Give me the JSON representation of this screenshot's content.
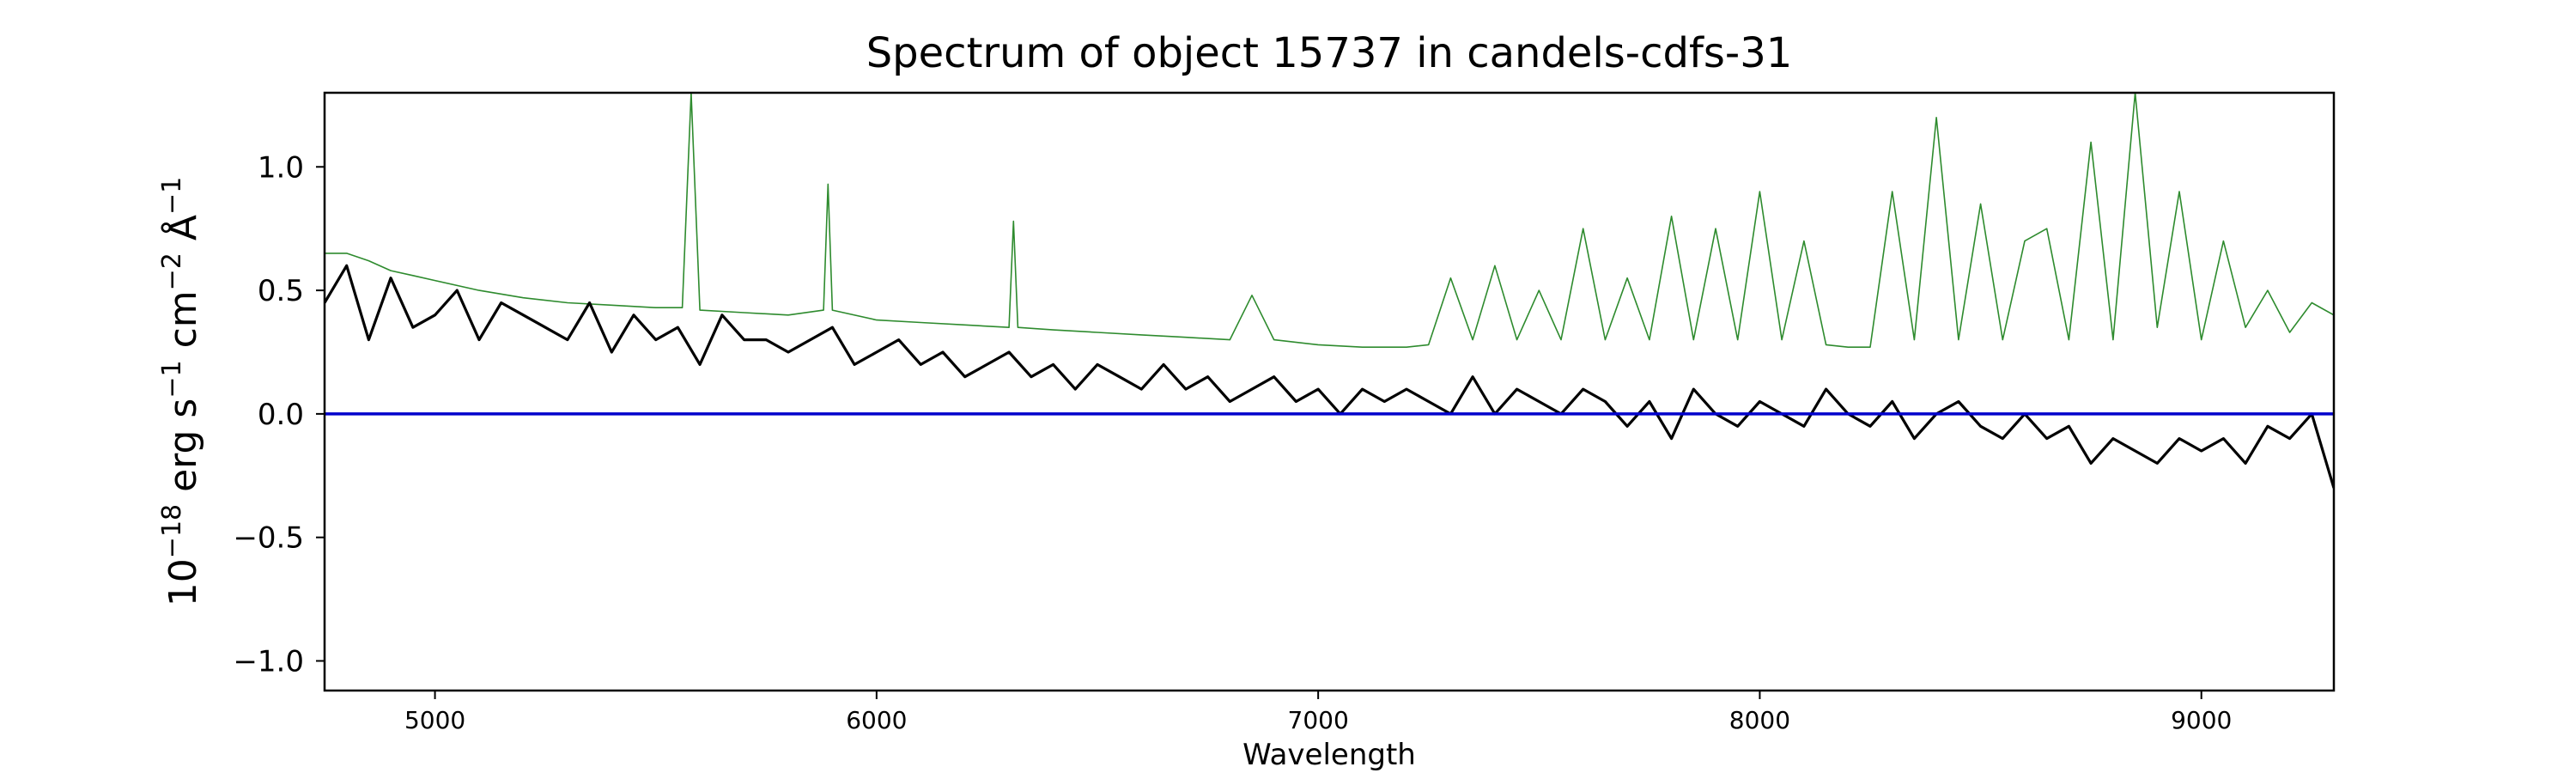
{
  "chart_data": {
    "type": "line",
    "title": "Spectrum of object 15737 in candels-cdfs-31",
    "xlabel": "Wavelength",
    "ylabel_base": "10",
    "ylabel_exp": "−18",
    "ylabel_unit_1": " erg s",
    "ylabel_exp_1": "−1",
    "ylabel_unit_2": " cm",
    "ylabel_exp_2": "−2",
    "ylabel_unit_3": " Å",
    "ylabel_exp_3": "−1",
    "xlim": [
      4750,
      9300
    ],
    "ylim": [
      -1.12,
      1.3
    ],
    "x_ticks": [
      5000,
      6000,
      7000,
      8000,
      9000
    ],
    "x_tick_labels": [
      "5000",
      "6000",
      "7000",
      "8000",
      "9000"
    ],
    "y_ticks": [
      -1.0,
      -0.5,
      0.0,
      0.5,
      1.0
    ],
    "y_tick_labels": [
      "−1.0",
      "−0.5",
      "0.0",
      "0.5",
      "1.0"
    ],
    "grid": false,
    "legend": "none",
    "series": [
      {
        "role": "flux",
        "color": "#000000",
        "x": [
          4750,
          4800,
          4850,
          4900,
          4950,
          5000,
          5050,
          5100,
          5150,
          5200,
          5250,
          5300,
          5350,
          5400,
          5450,
          5500,
          5550,
          5600,
          5650,
          5700,
          5750,
          5800,
          5850,
          5900,
          5950,
          6000,
          6050,
          6100,
          6150,
          6200,
          6250,
          6300,
          6350,
          6400,
          6450,
          6500,
          6550,
          6600,
          6650,
          6700,
          6750,
          6800,
          6850,
          6900,
          6950,
          7000,
          7050,
          7100,
          7150,
          7200,
          7250,
          7300,
          7350,
          7400,
          7450,
          7500,
          7550,
          7600,
          7650,
          7700,
          7750,
          7800,
          7850,
          7900,
          7950,
          8000,
          8050,
          8100,
          8150,
          8200,
          8250,
          8300,
          8350,
          8400,
          8450,
          8500,
          8550,
          8600,
          8650,
          8700,
          8750,
          8800,
          8850,
          8900,
          8950,
          9000,
          9050,
          9100,
          9150,
          9200,
          9250,
          9300
        ],
        "y": [
          0.45,
          0.6,
          0.3,
          0.55,
          0.35,
          0.4,
          0.5,
          0.3,
          0.45,
          0.4,
          0.35,
          0.3,
          0.45,
          0.25,
          0.4,
          0.3,
          0.35,
          0.2,
          0.4,
          0.3,
          0.3,
          0.25,
          0.3,
          0.35,
          0.2,
          0.25,
          0.3,
          0.2,
          0.25,
          0.15,
          0.2,
          0.25,
          0.15,
          0.2,
          0.1,
          0.2,
          0.15,
          0.1,
          0.2,
          0.1,
          0.15,
          0.05,
          0.1,
          0.15,
          0.05,
          0.1,
          0.0,
          0.1,
          0.05,
          0.1,
          0.05,
          0.0,
          0.15,
          0.0,
          0.1,
          0.05,
          0.0,
          0.1,
          0.05,
          -0.05,
          0.05,
          -0.1,
          0.1,
          0.0,
          -0.05,
          0.05,
          0.0,
          -0.05,
          0.1,
          0.0,
          -0.05,
          0.05,
          -0.1,
          0.0,
          0.05,
          -0.05,
          -0.1,
          0.0,
          -0.1,
          -0.05,
          -0.2,
          -0.1,
          -0.15,
          -0.2,
          -0.1,
          -0.15,
          -0.1,
          -0.2,
          -0.05,
          -0.1,
          0.0,
          -0.3
        ]
      },
      {
        "role": "error",
        "color": "#2e8b2e",
        "x": [
          4750,
          4800,
          4850,
          4900,
          4950,
          5000,
          5100,
          5200,
          5300,
          5400,
          5500,
          5560,
          5580,
          5600,
          5700,
          5800,
          5880,
          5890,
          5900,
          6000,
          6100,
          6200,
          6300,
          6310,
          6320,
          6400,
          6500,
          6600,
          6700,
          6800,
          6850,
          6900,
          7000,
          7100,
          7200,
          7250,
          7300,
          7350,
          7400,
          7450,
          7500,
          7550,
          7600,
          7650,
          7700,
          7750,
          7800,
          7850,
          7900,
          7950,
          8000,
          8050,
          8100,
          8150,
          8200,
          8250,
          8300,
          8350,
          8400,
          8450,
          8500,
          8550,
          8600,
          8650,
          8700,
          8750,
          8800,
          8850,
          8900,
          8950,
          9000,
          9050,
          9100,
          9150,
          9200,
          9250,
          9300
        ],
        "y": [
          0.65,
          0.65,
          0.62,
          0.58,
          0.56,
          0.54,
          0.5,
          0.47,
          0.45,
          0.44,
          0.43,
          0.43,
          1.3,
          0.42,
          0.41,
          0.4,
          0.42,
          0.93,
          0.42,
          0.38,
          0.37,
          0.36,
          0.35,
          0.78,
          0.35,
          0.34,
          0.33,
          0.32,
          0.31,
          0.3,
          0.48,
          0.3,
          0.28,
          0.27,
          0.27,
          0.28,
          0.55,
          0.3,
          0.6,
          0.3,
          0.5,
          0.3,
          0.75,
          0.3,
          0.55,
          0.3,
          0.8,
          0.3,
          0.75,
          0.3,
          0.9,
          0.3,
          0.7,
          0.28,
          0.27,
          0.27,
          0.9,
          0.3,
          1.2,
          0.3,
          0.85,
          0.3,
          0.7,
          0.75,
          0.3,
          1.1,
          0.3,
          1.3,
          0.35,
          0.9,
          0.3,
          0.7,
          0.35,
          0.5,
          0.33,
          0.45,
          0.4
        ]
      },
      {
        "role": "zero",
        "color": "#0000cc",
        "x": [
          4750,
          9300
        ],
        "y": [
          0,
          0
        ]
      }
    ]
  }
}
